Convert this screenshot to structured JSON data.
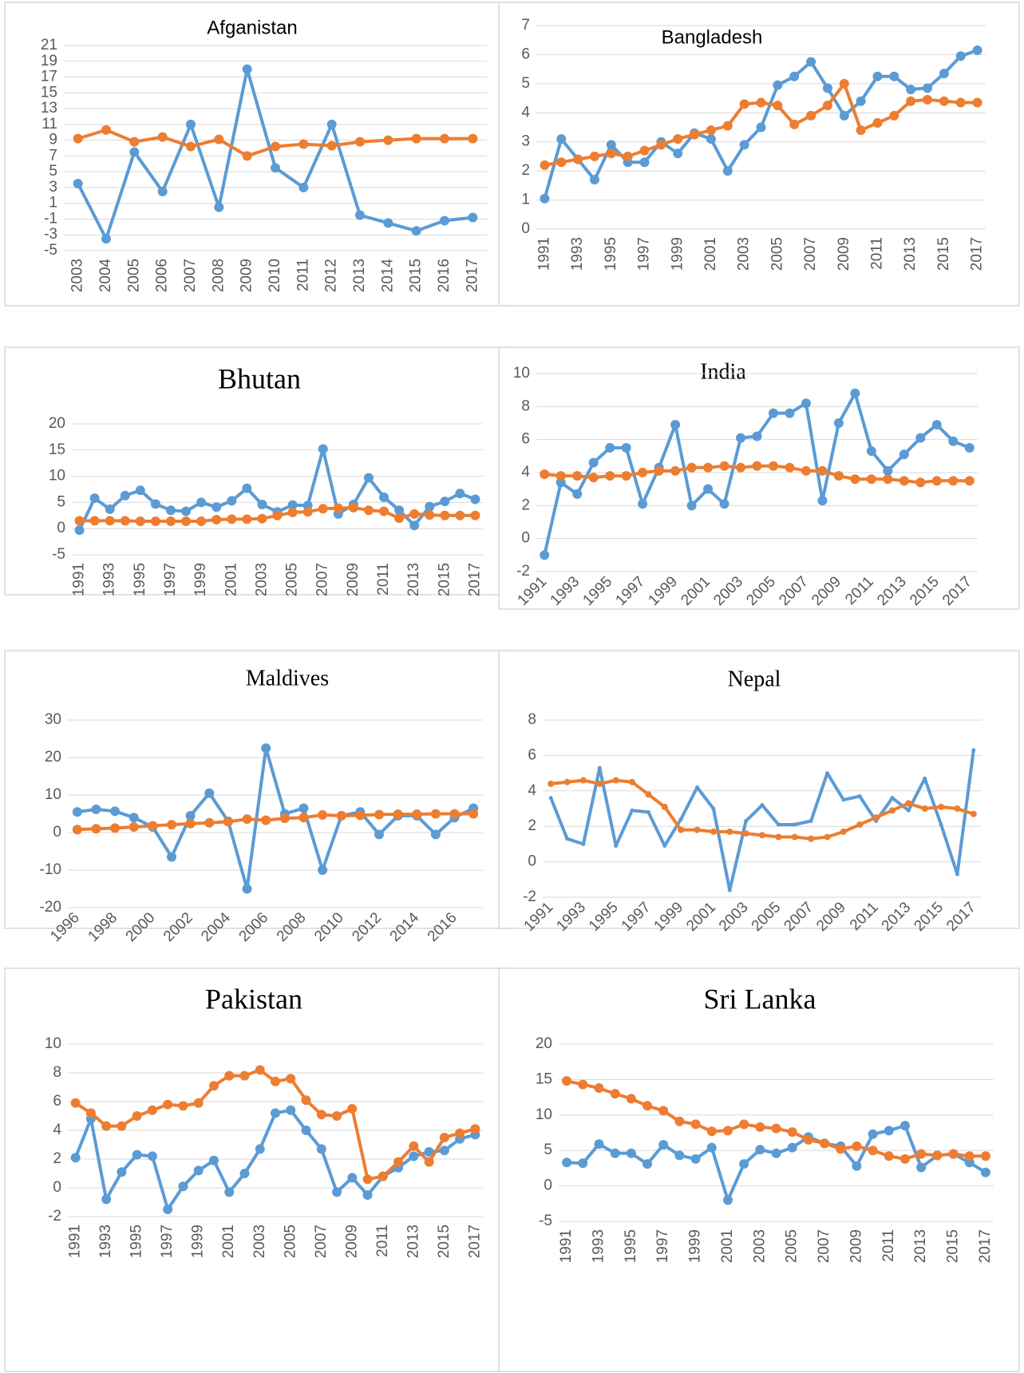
{
  "chart_data": [
    {
      "type": "line",
      "title": "Afganistan",
      "grid": true,
      "categories": [
        "2003",
        "2004",
        "2005",
        "2006",
        "2007",
        "2008",
        "2009",
        "2010",
        "2011",
        "2012",
        "2013",
        "2014",
        "2015",
        "2016",
        "2017"
      ],
      "ylim": [
        -5,
        21
      ],
      "yticks": [
        -5,
        -3,
        -1,
        1,
        3,
        5,
        7,
        9,
        11,
        13,
        15,
        17,
        19,
        21
      ],
      "series": [
        {
          "color": "#5b9bd5",
          "values": [
            3.5,
            -3.5,
            7.5,
            2.5,
            11,
            0.5,
            18,
            5.5,
            3,
            11,
            -0.5,
            -1.5,
            -2.5,
            -1.2,
            -0.8
          ]
        },
        {
          "color": "#ed7d31",
          "values": [
            9.2,
            10.3,
            8.8,
            9.4,
            8.2,
            9.1,
            7,
            8.2,
            8.5,
            8.3,
            8.8,
            9,
            9.2,
            9.2,
            9.2
          ]
        }
      ]
    },
    {
      "type": "line",
      "title": "Bangladesh",
      "grid": true,
      "categories": [
        "1991",
        null,
        "1993",
        null,
        "1995",
        null,
        "1997",
        null,
        "1999",
        null,
        "2001",
        null,
        "2003",
        null,
        "2005",
        null,
        "2007",
        null,
        "2009",
        null,
        "2011",
        null,
        "2013",
        null,
        "2015",
        null,
        "2017"
      ],
      "ylim": [
        0,
        7
      ],
      "yticks": [
        0,
        1,
        2,
        3,
        4,
        5,
        6,
        7
      ],
      "series": [
        {
          "color": "#5b9bd5",
          "values": [
            1.05,
            3.1,
            2.4,
            1.7,
            2.9,
            2.3,
            2.3,
            3.0,
            2.6,
            3.3,
            3.1,
            2.0,
            2.9,
            3.5,
            4.95,
            5.25,
            5.75,
            4.85,
            3.9,
            4.4,
            5.25,
            5.25,
            4.8,
            4.85,
            5.35,
            5.95,
            6.15
          ]
        },
        {
          "color": "#ed7d31",
          "values": [
            2.2,
            2.3,
            2.4,
            2.5,
            2.6,
            2.5,
            2.7,
            2.9,
            3.1,
            3.25,
            3.4,
            3.55,
            4.3,
            4.35,
            4.25,
            3.6,
            3.9,
            4.25,
            5.0,
            3.4,
            3.65,
            3.9,
            4.4,
            4.45,
            4.4,
            4.35,
            4.35
          ]
        }
      ]
    },
    {
      "type": "line",
      "title": "Bhutan",
      "grid": true,
      "categories": [
        "1991",
        null,
        "1993",
        null,
        "1995",
        null,
        "1997",
        null,
        "1999",
        null,
        "2001",
        null,
        "2003",
        null,
        "2005",
        null,
        "2007",
        null,
        "2009",
        null,
        "2011",
        null,
        "2013",
        null,
        "2015",
        null,
        "2017"
      ],
      "ylim": [
        -5,
        20
      ],
      "yticks": [
        -5,
        0,
        5,
        10,
        15,
        20
      ],
      "series": [
        {
          "color": "#5b9bd5",
          "values": [
            -0.3,
            5.8,
            3.7,
            6.3,
            7.3,
            4.7,
            3.5,
            3.3,
            5.0,
            4.1,
            5.3,
            7.7,
            4.6,
            3.2,
            4.5,
            4.4,
            15.2,
            2.8,
            4.6,
            9.7,
            6.0,
            3.5,
            0.6,
            4.2,
            5.2,
            6.7,
            5.6
          ]
        },
        {
          "color": "#ed7d31",
          "values": [
            1.5,
            1.5,
            1.5,
            1.5,
            1.4,
            1.4,
            1.4,
            1.4,
            1.4,
            1.7,
            1.8,
            1.8,
            1.9,
            2.5,
            3.1,
            3.2,
            3.8,
            3.9,
            4.0,
            3.5,
            3.3,
            2.0,
            2.8,
            2.6,
            2.5,
            2.5,
            2.5
          ]
        }
      ]
    },
    {
      "type": "line",
      "title": "India",
      "grid": true,
      "categories": [
        "1991",
        null,
        "1993",
        null,
        "1995",
        null,
        "1997",
        null,
        "1999",
        null,
        "2001",
        null,
        "2003",
        null,
        "2005",
        null,
        "2007",
        null,
        "2009",
        null,
        "2011",
        null,
        "2013",
        null,
        "2015",
        null,
        "2017"
      ],
      "ylim": [
        -2,
        10
      ],
      "yticks": [
        -2,
        0,
        2,
        4,
        6,
        8,
        10
      ],
      "series": [
        {
          "color": "#5b9bd5",
          "values": [
            -1,
            3.4,
            2.7,
            4.6,
            5.5,
            5.5,
            2.1,
            4.3,
            6.9,
            2.0,
            3.0,
            2.1,
            6.1,
            6.2,
            7.6,
            7.6,
            8.2,
            2.3,
            7.0,
            8.8,
            5.3,
            4.1,
            5.1,
            6.1,
            6.9,
            5.9,
            5.5
          ]
        },
        {
          "color": "#ed7d31",
          "values": [
            3.9,
            3.8,
            3.8,
            3.7,
            3.8,
            3.8,
            4.0,
            4.1,
            4.1,
            4.3,
            4.3,
            4.4,
            4.3,
            4.4,
            4.4,
            4.3,
            4.1,
            4.1,
            3.8,
            3.6,
            3.6,
            3.6,
            3.5,
            3.4,
            3.5,
            3.5,
            3.5
          ]
        }
      ]
    },
    {
      "type": "line",
      "title": "Maldives",
      "grid": true,
      "categories": [
        "1996",
        null,
        "1998",
        null,
        "2000",
        null,
        "2002",
        null,
        "2004",
        null,
        "2006",
        null,
        "2008",
        null,
        "2010",
        null,
        "2012",
        null,
        "2014",
        null,
        "2016",
        null
      ],
      "ylim": [
        -20,
        30
      ],
      "yticks": [
        -20,
        -10,
        0,
        10,
        20,
        30
      ],
      "series": [
        {
          "color": "#5b9bd5",
          "values": [
            5.5,
            6.2,
            5.7,
            4.0,
            1.5,
            -6.5,
            4.5,
            10.5,
            3,
            -15,
            22.5,
            5,
            6.5,
            -10,
            4.5,
            5.5,
            -0.5,
            4.5,
            4.5,
            -0.5,
            4,
            6.5
          ]
        },
        {
          "color": "#ed7d31",
          "values": [
            0.8,
            1.0,
            1.2,
            1.5,
            1.8,
            2.1,
            2.4,
            2.6,
            2.9,
            3.6,
            3.3,
            3.8,
            4.0,
            4.7,
            4.5,
            4.6,
            4.8,
            4.9,
            4.9,
            5.0,
            5.0,
            5.0
          ]
        }
      ]
    },
    {
      "type": "line",
      "title": "Nepal",
      "grid": true,
      "categories": [
        "1991",
        null,
        "1993",
        null,
        "1995",
        null,
        "1997",
        null,
        "1999",
        null,
        "2001",
        null,
        "2003",
        null,
        "2005",
        null,
        "2007",
        null,
        "2009",
        null,
        "2011",
        null,
        "2013",
        null,
        "2015",
        null,
        "2017"
      ],
      "ylim": [
        -2,
        8
      ],
      "yticks": [
        -2,
        0,
        2,
        4,
        6,
        8
      ],
      "series": [
        {
          "color": "#5b9bd5",
          "values": [
            3.6,
            1.3,
            1.0,
            5.3,
            0.9,
            2.9,
            2.8,
            0.9,
            2.4,
            4.2,
            3.0,
            -1.6,
            2.3,
            3.2,
            2.1,
            2.1,
            2.3,
            5.0,
            3.5,
            3.7,
            2.3,
            3.6,
            2.9,
            4.7,
            2.1,
            -0.7,
            6.3
          ]
        },
        {
          "color": "#ed7d31",
          "values": [
            4.4,
            4.5,
            4.6,
            4.4,
            4.6,
            4.5,
            3.8,
            3.1,
            1.8,
            1.8,
            1.7,
            1.7,
            1.6,
            1.5,
            1.4,
            1.4,
            1.3,
            1.4,
            1.7,
            2.1,
            2.5,
            2.9,
            3.3,
            3.0,
            3.1,
            3.0,
            2.7
          ]
        }
      ]
    },
    {
      "type": "line",
      "title": "Pakistan",
      "grid": true,
      "categories": [
        "1991",
        null,
        "1993",
        null,
        "1995",
        null,
        "1997",
        null,
        "1999",
        null,
        "2001",
        null,
        "2003",
        null,
        "2005",
        null,
        "2007",
        null,
        "2009",
        null,
        "2011",
        null,
        "2013",
        null,
        "2015",
        null,
        "2017"
      ],
      "ylim": [
        -2,
        10
      ],
      "yticks": [
        -2,
        0,
        2,
        4,
        6,
        8,
        10
      ],
      "series": [
        {
          "color": "#5b9bd5",
          "values": [
            2.1,
            4.8,
            -0.8,
            1.1,
            2.3,
            2.2,
            -1.5,
            0.1,
            1.2,
            1.9,
            -0.3,
            1.0,
            2.7,
            5.2,
            5.4,
            4.0,
            2.7,
            -0.3,
            0.7,
            -0.5,
            0.8,
            1.4,
            2.2,
            2.5,
            2.6,
            3.4,
            3.7
          ]
        },
        {
          "color": "#ed7d31",
          "values": [
            5.9,
            5.2,
            4.3,
            4.3,
            5.0,
            5.4,
            5.8,
            5.7,
            5.9,
            7.1,
            7.8,
            7.8,
            8.2,
            7.4,
            7.6,
            6.1,
            5.1,
            5.0,
            5.5,
            0.6,
            0.8,
            1.8,
            2.9,
            1.8,
            3.5,
            3.8,
            4.1
          ]
        }
      ]
    },
    {
      "type": "line",
      "title": "Sri Lanka",
      "grid": true,
      "categories": [
        "1991",
        null,
        "1993",
        null,
        "1995",
        null,
        "1997",
        null,
        "1999",
        null,
        "2001",
        null,
        "2003",
        null,
        "2005",
        null,
        "2007",
        null,
        "2009",
        null,
        "2011",
        null,
        "2013",
        null,
        "2015",
        null,
        "2017"
      ],
      "ylim": [
        -5,
        20
      ],
      "yticks": [
        -5,
        0,
        5,
        10,
        15,
        20
      ],
      "series": [
        {
          "color": "#5b9bd5",
          "values": [
            3.3,
            3.2,
            5.9,
            4.6,
            4.6,
            3.1,
            5.8,
            4.3,
            3.8,
            5.4,
            -2.0,
            3.1,
            5.1,
            4.6,
            5.4,
            6.9,
            6.0,
            5.6,
            2.8,
            7.3,
            7.8,
            8.5,
            2.6,
            4.3,
            4.5,
            3.3,
            1.9
          ]
        },
        {
          "color": "#ed7d31",
          "values": [
            14.8,
            14.3,
            13.8,
            13.0,
            12.3,
            11.3,
            10.6,
            9.1,
            8.7,
            7.7,
            7.8,
            8.7,
            8.3,
            8.1,
            7.6,
            6.5,
            6.0,
            5.2,
            5.6,
            5.0,
            4.2,
            3.8,
            4.5,
            4.3,
            4.5,
            4.2,
            4.2
          ]
        }
      ]
    }
  ]
}
